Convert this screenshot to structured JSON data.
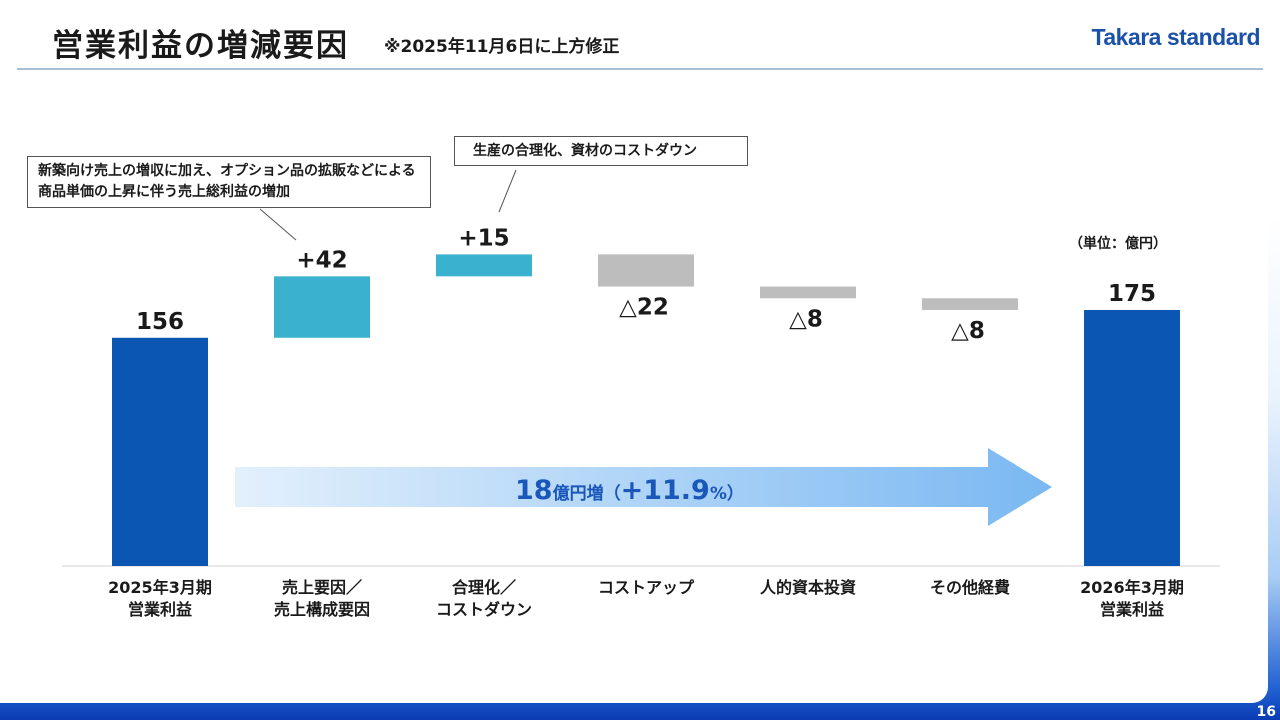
{
  "header": {
    "title": "営業利益の増減要因",
    "note": "※2025年11月6日に上方修正",
    "logo": "Takara standard"
  },
  "page_number": "16",
  "unit_label": "（単位：億円）",
  "callouts": {
    "sales": "新築向け売上の増収に加え、オプション品の拡販などによる商品単価の上昇に伴う売上総利益の増加",
    "rationalization": "生産の合理化、資材のコストダウン"
  },
  "growth": {
    "amount": "18",
    "unit": "億円増",
    "open": "（",
    "pct_value": "+11.9",
    "pct_sign": "%",
    "close": "）"
  },
  "colors": {
    "total": "#0b56b3",
    "increase": "#3bb1d0",
    "decrease": "#bdbdbd",
    "arrow_start": "#e3f0fc",
    "arrow_end": "#7ab8f2"
  },
  "chart_data": {
    "type": "bar",
    "subtype": "waterfall",
    "categories": [
      [
        "2025年3月期",
        "営業利益"
      ],
      [
        "売上要因／",
        "売上構成要因"
      ],
      [
        "合理化／",
        "コストダウン"
      ],
      [
        "コストアップ"
      ],
      [
        "人的資本投資"
      ],
      [
        "その他経費"
      ],
      [
        "2026年3月期",
        "営業利益"
      ]
    ],
    "values": [
      156,
      42,
      15,
      -22,
      -8,
      -8,
      175
    ],
    "kinds": [
      "total",
      "increase",
      "increase",
      "decrease",
      "decrease",
      "decrease",
      "total"
    ],
    "value_labels": [
      "156",
      "+42",
      "+15",
      "△22",
      "△8",
      "△8",
      "175"
    ],
    "ylim": [
      0,
      215
    ]
  }
}
